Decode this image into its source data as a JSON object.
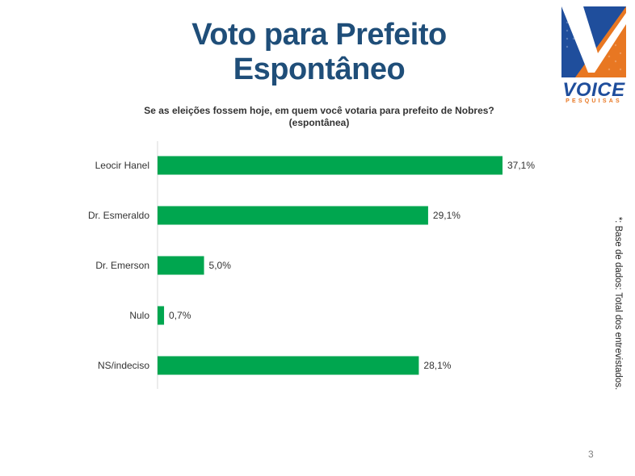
{
  "slide": {
    "title": "Voto para Prefeito Espontâneo",
    "side_note": "*: Base de dados: Total dos  entrevistados.",
    "page_number": "3"
  },
  "logo": {
    "name": "VOICE",
    "tagline": "PESQUISAS",
    "colors": {
      "blue": "#1f4e9c",
      "orange": "#e87722"
    }
  },
  "chart_data": {
    "type": "bar",
    "orientation": "horizontal",
    "title": "Se as eleições fossem hoje, em quem você votaria para prefeito de Nobres?",
    "subtitle": "(espontânea)",
    "categories": [
      "Leocir Hanel",
      "Dr. Esmeraldo",
      "Dr. Emerson",
      "Nulo",
      "NS/indeciso"
    ],
    "values": [
      37.1,
      29.1,
      5.0,
      0.7,
      28.1
    ],
    "data_labels": [
      "37,1%",
      "29,1%",
      "5,0%",
      "0,7%",
      "28,1%"
    ],
    "unit": "%",
    "xlim": [
      0,
      37.1
    ],
    "grid": false,
    "legend": "none",
    "bar_color": "#00a64f"
  }
}
